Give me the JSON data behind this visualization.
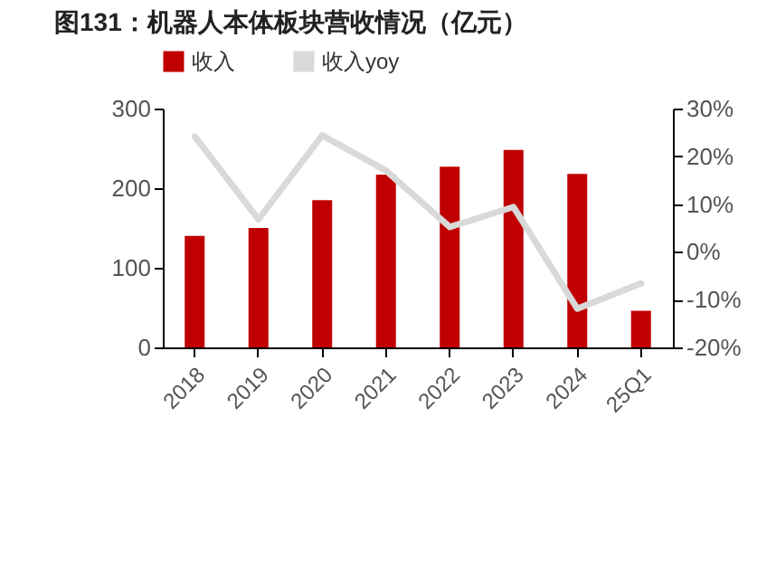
{
  "chart_data": {
    "type": "bar",
    "title": "图131：机器人本体板块营收情况（亿元）",
    "categories": [
      "2018",
      "2019",
      "2020",
      "2021",
      "2022",
      "2023",
      "2024",
      "25Q1"
    ],
    "series": [
      {
        "name": "收入",
        "color": "#c00000",
        "values": [
          140,
          150,
          185,
          217,
          227,
          248,
          218,
          46
        ]
      },
      {
        "name": "收入yoy",
        "type": "line",
        "axis": "y2",
        "color": "#d9d9d9",
        "values": [
          24.2,
          6.8,
          24.4,
          17,
          5.2,
          9.4,
          -11.9,
          -6.6
        ]
      }
    ],
    "ylim": [
      0,
      300
    ],
    "yticks": [
      0,
      100,
      200,
      300
    ],
    "y2lim": [
      -20,
      30
    ],
    "y2ticks": [
      {
        "value": -20,
        "label": "-20%"
      },
      {
        "value": -10,
        "label": "-10%"
      },
      {
        "value": 0,
        "label": "0%"
      },
      {
        "value": 10,
        "label": "10%"
      },
      {
        "value": 20,
        "label": "20%"
      },
      {
        "value": 30,
        "label": "30%"
      }
    ],
    "legend": "top",
    "grid": false
  }
}
